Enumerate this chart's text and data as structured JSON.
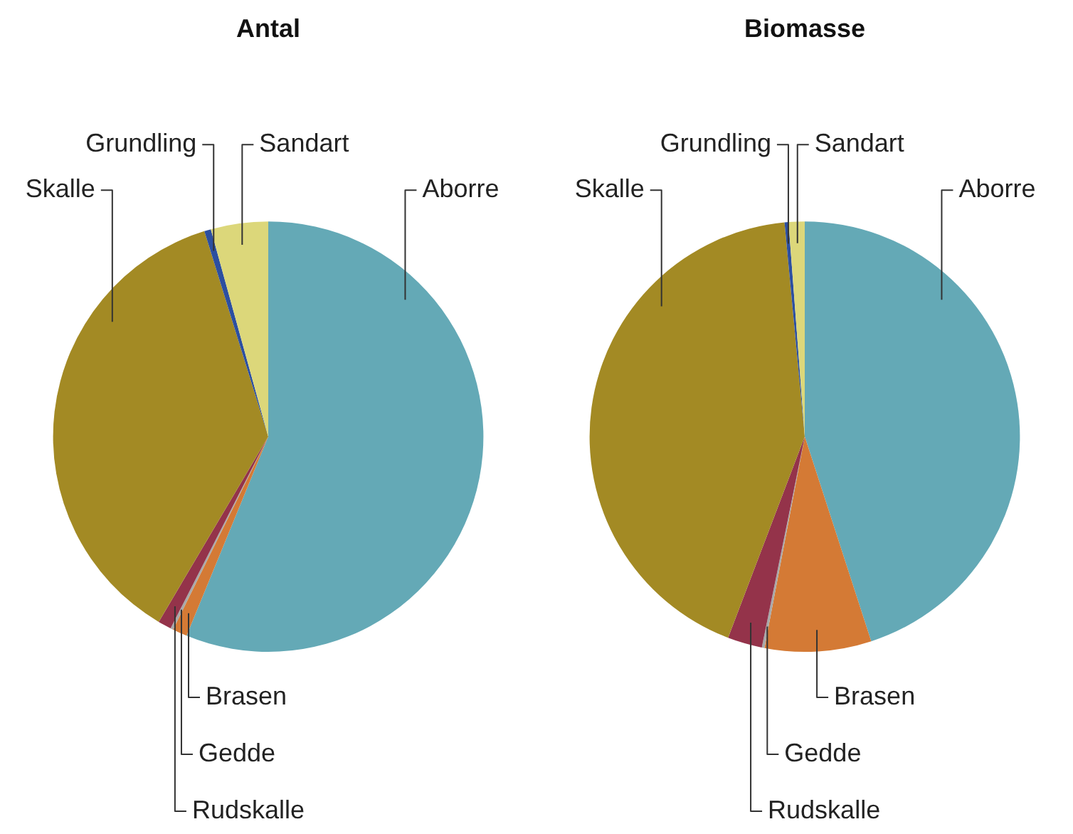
{
  "chart_data": [
    {
      "type": "pie",
      "title": "Antal",
      "categories": [
        "Aborre",
        "Brasen",
        "Gedde",
        "Rudskalle",
        "Skalle",
        "Grundling",
        "Sandart"
      ],
      "values": [
        56.2,
        1.1,
        0.2,
        1,
        36.7,
        0.5,
        4.3
      ],
      "colors": [
        "#64a9b6",
        "#d47a35",
        "#a9a9a9",
        "#94334a",
        "#a38a24",
        "#2c4fa0",
        "#dcd77a"
      ]
    },
    {
      "type": "pie",
      "title": "Biomasse",
      "categories": [
        "Aborre",
        "Brasen",
        "Gedde",
        "Rudskalle",
        "Skalle",
        "Grundling",
        "Sandart"
      ],
      "values": [
        45,
        8,
        0.2,
        2.6,
        42.7,
        0.3,
        1.2
      ],
      "colors": [
        "#64a9b6",
        "#d47a35",
        "#a9a9a9",
        "#94334a",
        "#a38a24",
        "#2c4fa0",
        "#dcd77a"
      ]
    }
  ]
}
